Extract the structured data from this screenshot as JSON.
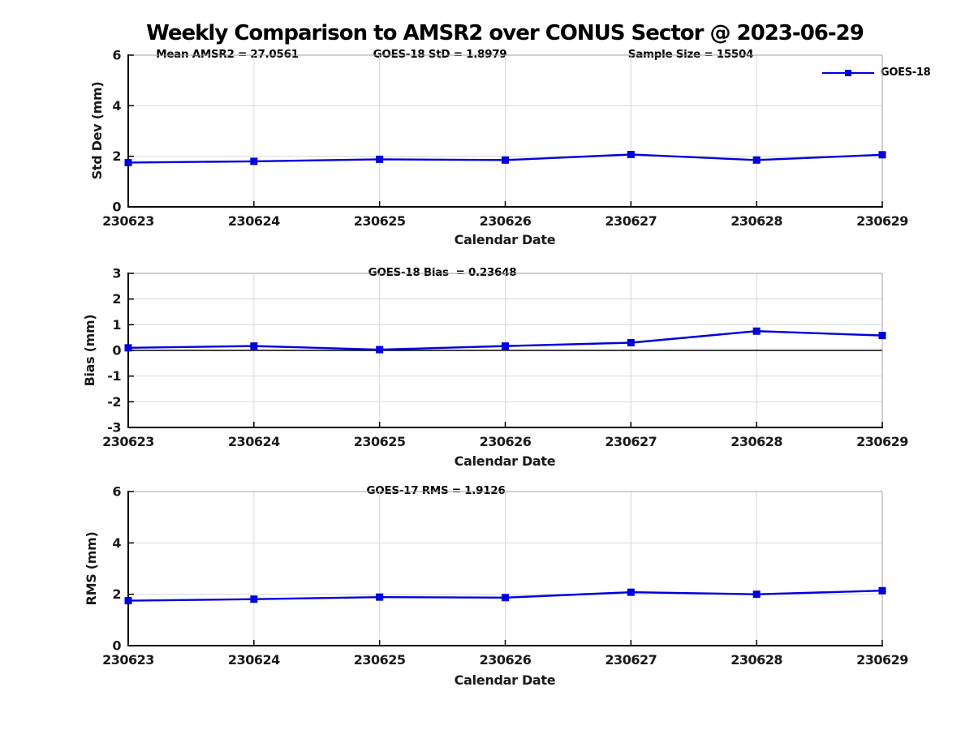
{
  "figure_title": "Weekly Comparison to AMSR2 over CONUS Sector @ 2023-06-29",
  "legend": {
    "label": "GOES-18"
  },
  "colors": {
    "line": "#0000dd",
    "marker": "#0000dd",
    "grid": "#d9d9d9",
    "axis": "#000000",
    "spine_light": "#a3a3a3",
    "zero_line": "#000000",
    "text": "#000000",
    "background": "#ffffff"
  },
  "chart_data": [
    {
      "type": "line",
      "ylabel": "Std Dev (mm)",
      "xlabel": "Calendar Date",
      "annotations": [
        {
          "text": "Mean AMSR2 = 27.0561"
        },
        {
          "text": "GOES-18 StD = 1.8979"
        },
        {
          "text": "Sample Size = 15504"
        }
      ],
      "categories": [
        "230623",
        "230624",
        "230625",
        "230626",
        "230627",
        "230628",
        "230629"
      ],
      "series": [
        {
          "name": "GOES-18",
          "marker": "square",
          "values": [
            1.75,
            1.8,
            1.88,
            1.85,
            2.07,
            1.85,
            2.06
          ]
        }
      ],
      "ylim": [
        0,
        6
      ],
      "yticks": [
        "0",
        "2",
        "4",
        "6"
      ],
      "grid": true,
      "zero_line": false,
      "legend_position": "top-right"
    },
    {
      "type": "line",
      "ylabel": "Bias (mm)",
      "xlabel": "Calendar Date",
      "annotations": [
        {
          "text": "GOES-18 Bias  = 0.23648"
        }
      ],
      "categories": [
        "230623",
        "230624",
        "230625",
        "230626",
        "230627",
        "230628",
        "230629"
      ],
      "series": [
        {
          "name": "GOES-18",
          "marker": "square",
          "values": [
            0.1,
            0.17,
            0.03,
            0.17,
            0.3,
            0.75,
            0.58
          ]
        }
      ],
      "ylim": [
        -3,
        3
      ],
      "yticks": [
        "-3",
        "-2",
        "-1",
        "0",
        "1",
        "2",
        "3"
      ],
      "grid": true,
      "zero_line": true,
      "legend_position": "none"
    },
    {
      "type": "line",
      "ylabel": "RMS (mm)",
      "xlabel": "Calendar Date",
      "annotations": [
        {
          "text": "GOES-17 RMS = 1.9126"
        }
      ],
      "categories": [
        "230623",
        "230624",
        "230625",
        "230626",
        "230627",
        "230628",
        "230629"
      ],
      "series": [
        {
          "name": "GOES-18",
          "marker": "square",
          "values": [
            1.75,
            1.81,
            1.89,
            1.87,
            2.08,
            2.0,
            2.14
          ]
        }
      ],
      "ylim": [
        0,
        6
      ],
      "yticks": [
        "0",
        "2",
        "4",
        "6"
      ],
      "grid": true,
      "zero_line": false,
      "legend_position": "none"
    }
  ]
}
